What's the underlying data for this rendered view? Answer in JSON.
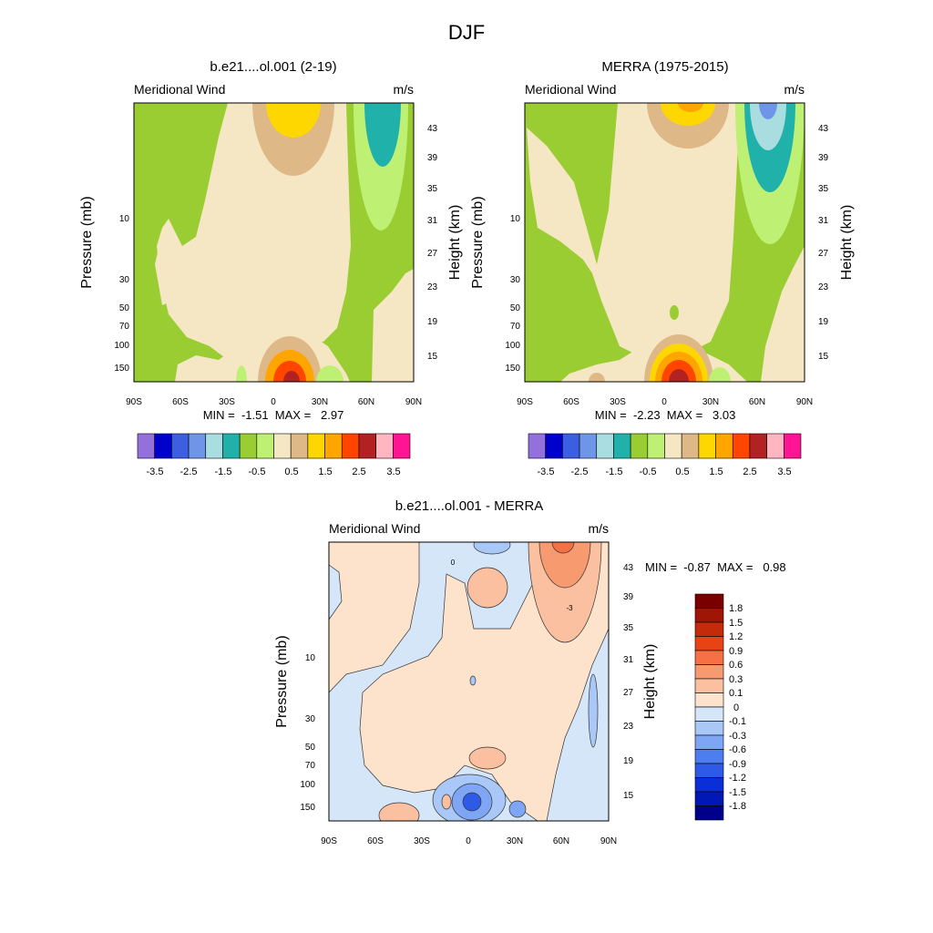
{
  "figure": {
    "title": "DJF"
  },
  "colors": {
    "panel_palette": [
      "#9370db",
      "#0000cd",
      "#3b5fe0",
      "#6f95e8",
      "#a9dde0",
      "#20b2aa",
      "#9acd32",
      "#bef073",
      "#f5e6c4",
      "#deb887",
      "#ffd700",
      "#ffa500",
      "#ff4500",
      "#b22222",
      "#ffb6c1",
      "#ff1493"
    ],
    "diff_palette": [
      "#00008b",
      "#0018b5",
      "#0a2fd6",
      "#2d5ae6",
      "#4d7ef0",
      "#7ea6f5",
      "#aac8f7",
      "#d5e6f8",
      "#fde3cc",
      "#fbc0a0",
      "#f89a70",
      "#f57045",
      "#e74416",
      "#c42b0a",
      "#9f1607",
      "#7a0000"
    ]
  },
  "chart_data": [
    {
      "type": "heatmap",
      "title": "b.e21....ol.001 (2-19)",
      "left_label": "Meridional Wind",
      "right_label": "m/s",
      "ylabel": "Pressure (mb)",
      "ylabel_right": "Height (km)",
      "x_ticks": [
        "90S",
        "60S",
        "30S",
        "0",
        "30N",
        "60N",
        "90N"
      ],
      "y_ticks": [
        "10",
        "30",
        "50",
        "70",
        "100",
        "150"
      ],
      "height_ticks": [
        "43",
        "39",
        "35",
        "31",
        "27",
        "23",
        "19",
        "15"
      ],
      "stats": "MIN =  -1.51  MAX =   2.97",
      "colorbar_labels": [
        "-3.5",
        "-2.5",
        "-1.5",
        "-0.5",
        "0.5",
        "1.5",
        "2.5",
        "3.5"
      ]
    },
    {
      "type": "heatmap",
      "title": "MERRA (1975-2015)",
      "left_label": "Meridional Wind",
      "right_label": "m/s",
      "ylabel": "Pressure (mb)",
      "ylabel_right": "Height (km)",
      "x_ticks": [
        "90S",
        "60S",
        "30S",
        "0",
        "30N",
        "60N",
        "90N"
      ],
      "y_ticks": [
        "10",
        "30",
        "50",
        "70",
        "100",
        "150"
      ],
      "height_ticks": [
        "43",
        "39",
        "35",
        "31",
        "27",
        "23",
        "19",
        "15"
      ],
      "stats": "MIN =  -2.23  MAX =   3.03",
      "colorbar_labels": [
        "-3.5",
        "-2.5",
        "-1.5",
        "-0.5",
        "0.5",
        "1.5",
        "2.5",
        "3.5"
      ]
    },
    {
      "type": "heatmap",
      "title": "b.e21....ol.001 - MERRA",
      "left_label": "Meridional Wind",
      "right_label": "m/s",
      "ylabel": "Pressure (mb)",
      "ylabel_right": "Height (km)",
      "x_ticks": [
        "90S",
        "60S",
        "30S",
        "0",
        "30N",
        "60N",
        "90N"
      ],
      "y_ticks": [
        "10",
        "30",
        "50",
        "70",
        "100",
        "150"
      ],
      "height_ticks": [
        "43",
        "39",
        "35",
        "31",
        "27",
        "23",
        "19",
        "15"
      ],
      "stats": "MIN =  -0.87  MAX =   0.98",
      "colorbar_labels": [
        "1.8",
        "1.5",
        "1.2",
        "0.9",
        "0.6",
        "0.3",
        "0.1",
        "0",
        "-0.1",
        "-0.3",
        "-0.6",
        "-0.9",
        "-1.2",
        "-1.5",
        "-1.8"
      ],
      "contour_labels": [
        "0",
        "-3"
      ]
    }
  ]
}
